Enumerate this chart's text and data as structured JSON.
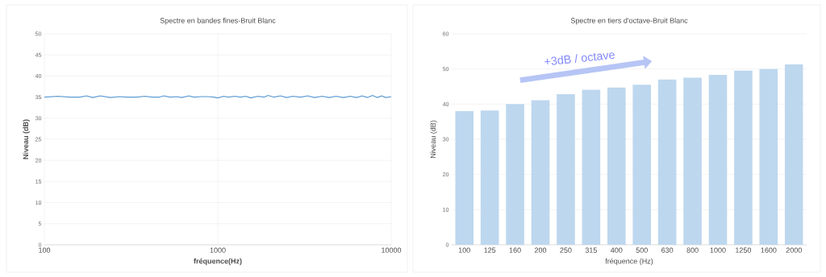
{
  "chart_data": [
    {
      "type": "line",
      "title": "Spectre en bandes fines-Bruit Blanc",
      "xlabel": "fréquence(Hz)",
      "ylabel": "Niveau (dB)",
      "log": "x",
      "xlim": [
        100,
        10000
      ],
      "xticks": [
        100,
        1000,
        10000
      ],
      "ylim": [
        0,
        50
      ],
      "yticks": [
        0,
        5,
        10,
        15,
        20,
        25,
        30,
        35,
        40,
        45,
        50
      ],
      "grid": true,
      "series": [
        {
          "color": "#5b9bd5",
          "x": [
            100,
            120,
            140,
            160,
            175,
            190,
            210,
            240,
            270,
            300,
            340,
            380,
            420,
            460,
            490,
            530,
            580,
            620,
            680,
            730,
            800,
            880,
            950,
            1000,
            1080,
            1150,
            1250,
            1350,
            1450,
            1550,
            1700,
            1850,
            1950,
            2100,
            2300,
            2500,
            2700,
            3000,
            3300,
            3600,
            4000,
            4400,
            4800,
            5300,
            5800,
            6300,
            6800,
            7300,
            7800,
            8300,
            8800,
            9300,
            10000
          ],
          "values": [
            35,
            35.2,
            35.0,
            35.0,
            35.3,
            34.9,
            35.3,
            34.9,
            35.1,
            35.0,
            35.0,
            35.2,
            35.0,
            35.0,
            35.3,
            35.0,
            35.1,
            34.9,
            35.3,
            35.0,
            35.1,
            35.1,
            35.0,
            34.8,
            35.2,
            35.0,
            35.2,
            35.0,
            35.2,
            34.8,
            35.2,
            35.0,
            35.4,
            35.0,
            35.3,
            34.9,
            35.2,
            35.0,
            35.3,
            34.9,
            35.2,
            34.9,
            35.2,
            34.9,
            35.2,
            34.9,
            35.3,
            34.9,
            35.4,
            34.9,
            35.3,
            34.9,
            35.1
          ]
        }
      ]
    },
    {
      "type": "bar",
      "title": "Spectre en tiers d'octave-Bruit Blanc",
      "xlabel": "fréquence (Hz)",
      "ylabel": "Niveau (dB)",
      "ylim": [
        0,
        60
      ],
      "yticks": [
        0,
        10,
        20,
        30,
        40,
        50,
        60
      ],
      "grid": "y",
      "categories": [
        "100",
        "125",
        "160",
        "200",
        "250",
        "315",
        "400",
        "500",
        "630",
        "800",
        "1000",
        "1250",
        "1600",
        "2000"
      ],
      "values": [
        38,
        38.2,
        40,
        41.1,
        42.8,
        44.1,
        44.7,
        45.5,
        47,
        47.5,
        48.3,
        49.5,
        50,
        51.3
      ],
      "color": "#bdd7ee",
      "annotations": [
        "+3dB / octave"
      ]
    }
  ]
}
